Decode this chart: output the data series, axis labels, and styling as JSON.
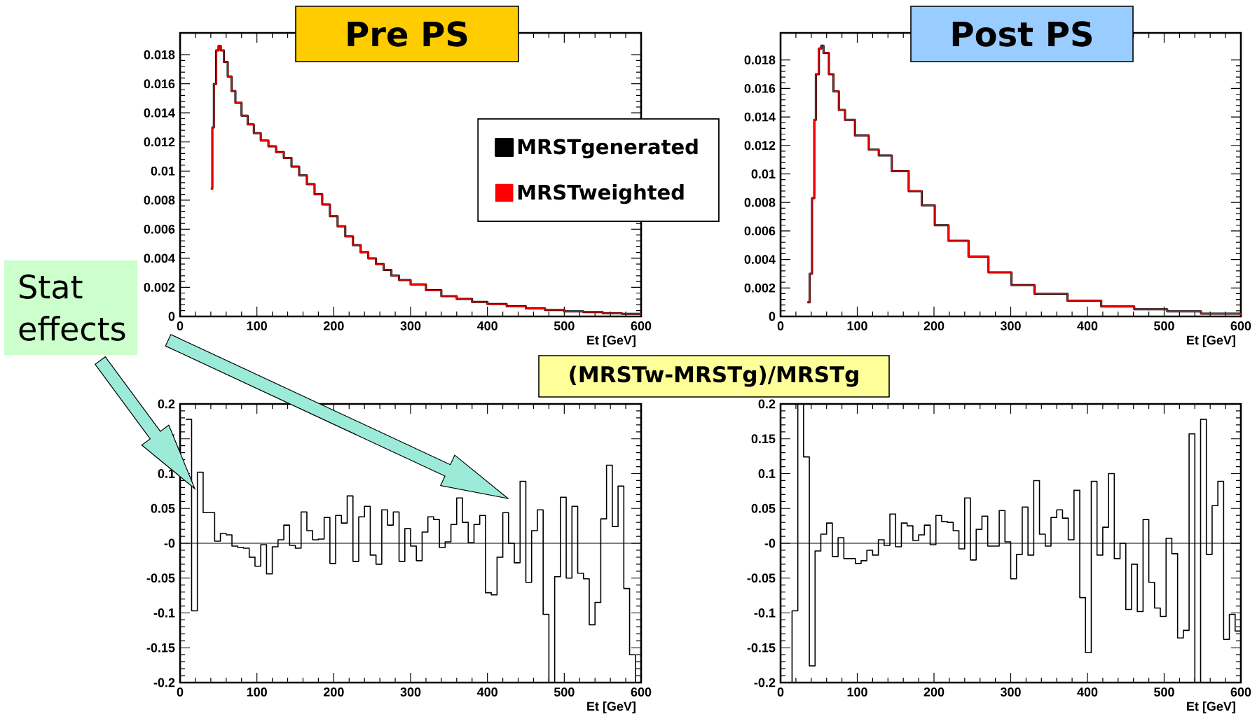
{
  "chart_data": [
    {
      "type": "step",
      "title": "Pre PS",
      "xlabel": "Et [GeV]",
      "legend": "right",
      "xlim": [
        0,
        600
      ],
      "ylim": [
        0,
        0.0195
      ],
      "xticks": [
        0,
        100,
        200,
        300,
        400,
        500,
        600
      ],
      "yticks": [
        0,
        0.002,
        0.004,
        0.006,
        0.008,
        0.01,
        0.012,
        0.014,
        0.016,
        0.018
      ],
      "x": [
        40,
        42,
        44,
        47,
        50,
        53,
        57,
        62,
        67,
        72,
        80,
        88,
        96,
        105,
        115,
        125,
        135,
        145,
        155,
        165,
        175,
        185,
        195,
        205,
        215,
        225,
        235,
        245,
        255,
        265,
        275,
        285,
        300,
        320,
        340,
        360,
        380,
        400,
        425,
        450,
        475,
        500,
        525,
        550,
        575,
        600
      ],
      "series": [
        {
          "name": "MRSTgenerated",
          "color": "#000000",
          "values": [
            0.0088,
            0.013,
            0.016,
            0.0183,
            0.0186,
            0.0183,
            0.0175,
            0.0165,
            0.0155,
            0.0147,
            0.0138,
            0.0132,
            0.0126,
            0.0121,
            0.0117,
            0.0113,
            0.0109,
            0.0103,
            0.0097,
            0.0091,
            0.0084,
            0.0077,
            0.0069,
            0.0062,
            0.0055,
            0.0049,
            0.0044,
            0.004,
            0.0036,
            0.0032,
            0.0028,
            0.0025,
            0.0022,
            0.0018,
            0.0014,
            0.0012,
            0.001,
            0.00085,
            0.0007,
            0.00055,
            0.00045,
            0.00035,
            0.0003,
            0.00022,
            0.00018,
            0.00012
          ]
        },
        {
          "name": "MRSTweighted",
          "color": "#ff0000",
          "values": [
            0.0088,
            0.013,
            0.016,
            0.0183,
            0.0186,
            0.0183,
            0.0175,
            0.0165,
            0.0155,
            0.0147,
            0.0138,
            0.0132,
            0.0126,
            0.0121,
            0.0117,
            0.0113,
            0.0109,
            0.0103,
            0.0097,
            0.0091,
            0.0084,
            0.0077,
            0.0069,
            0.0062,
            0.0055,
            0.0049,
            0.0044,
            0.004,
            0.0036,
            0.0032,
            0.0028,
            0.0025,
            0.0022,
            0.0018,
            0.0014,
            0.0012,
            0.001,
            0.00085,
            0.0007,
            0.00055,
            0.00045,
            0.00035,
            0.0003,
            0.00022,
            0.00018,
            0.00012
          ]
        }
      ]
    },
    {
      "type": "step",
      "title": "Post PS",
      "xlabel": "Et [GeV]",
      "xlim": [
        0,
        600
      ],
      "ylim": [
        0,
        0.0199
      ],
      "xticks": [
        0,
        100,
        200,
        300,
        400,
        500,
        600
      ],
      "yticks": [
        0,
        0.002,
        0.004,
        0.006,
        0.008,
        0.01,
        0.012,
        0.014,
        0.016,
        0.018
      ],
      "x": [
        35,
        38,
        41,
        44,
        46,
        50,
        53,
        56,
        63,
        69,
        76,
        84,
        97,
        115,
        128,
        145,
        167,
        184,
        201,
        219,
        245,
        271,
        301,
        331,
        374,
        418,
        461,
        504,
        548,
        600
      ],
      "series": [
        {
          "color": "#000000",
          "values": [
            0.001,
            0.003,
            0.0083,
            0.0138,
            0.017,
            0.0188,
            0.019,
            0.0185,
            0.017,
            0.0158,
            0.0145,
            0.0138,
            0.0127,
            0.0117,
            0.0113,
            0.0102,
            0.0088,
            0.0078,
            0.0064,
            0.0053,
            0.0042,
            0.0031,
            0.0022,
            0.0016,
            0.0011,
            0.0007,
            0.0005,
            0.00035,
            0.0002,
            0.0001
          ]
        },
        {
          "color": "#ff0000",
          "values": [
            0.001,
            0.003,
            0.0083,
            0.0138,
            0.017,
            0.0188,
            0.019,
            0.0185,
            0.017,
            0.0158,
            0.0145,
            0.0138,
            0.0127,
            0.0117,
            0.0113,
            0.0102,
            0.0088,
            0.0078,
            0.0064,
            0.0053,
            0.0042,
            0.0031,
            0.0022,
            0.0016,
            0.0011,
            0.0007,
            0.0005,
            0.00035,
            0.0002,
            0.0001
          ]
        }
      ]
    },
    {
      "type": "histogram",
      "title": "(MRSTw-MRSTg)/MRSTg",
      "xlabel": "Et [GeV]",
      "annotations": [
        "Stat effects"
      ],
      "color": "#000000",
      "xlim": [
        0,
        600
      ],
      "ylim": [
        -0.2,
        0.2
      ],
      "xticks": [
        0,
        100,
        200,
        300,
        400,
        500,
        600
      ],
      "yticks": [
        -0.2,
        -0.15,
        -0.1,
        -0.05,
        {
          "value": 0,
          "label": "-0"
        },
        0.05,
        0.1,
        0.15,
        0.2
      ],
      "ref_lines": [
        {
          "axis": "y",
          "value": 0
        }
      ],
      "bins": [
        7.5,
        15,
        22.5,
        30,
        37.5,
        45,
        52.5,
        60,
        67.5,
        75,
        82.5,
        90,
        97.5,
        105,
        112.5,
        120,
        127.5,
        135,
        142.5,
        150,
        157.5,
        165,
        172.5,
        180,
        187.5,
        195,
        202.5,
        210,
        217.5,
        225,
        232.5,
        240,
        247.5,
        255,
        262.5,
        270,
        277.5,
        285,
        292.5,
        300,
        307.5,
        315,
        322.5,
        330,
        337.5,
        345,
        352.5,
        360,
        367.5,
        375,
        382.5,
        390,
        397.5,
        405,
        412.5,
        420,
        427.5,
        435,
        442.5,
        450,
        457.5,
        465,
        472.5,
        480,
        487.5,
        495,
        502.5,
        510,
        517.5,
        525,
        532.5,
        540,
        547.5,
        555,
        562.5,
        570,
        577.5,
        585,
        592.5,
        600
      ],
      "values": [
        0.178,
        -0.097,
        0.102,
        0.044,
        0.044,
        0.003,
        0.014,
        0.012,
        -0.004,
        -0.006,
        -0.007,
        -0.02,
        -0.033,
        -0.002,
        -0.044,
        -0.005,
        0.005,
        0.026,
        -0.003,
        -0.007,
        0.045,
        0.018,
        0.005,
        0.006,
        0.037,
        -0.029,
        0.04,
        0.029,
        0.068,
        -0.026,
        0.038,
        0.053,
        -0.017,
        -0.03,
        0.048,
        0.026,
        0.045,
        -0.026,
        0.021,
        -0.004,
        -0.025,
        0.016,
        0.038,
        0.034,
        -0.006,
        0.002,
        0.027,
        0.065,
        0.03,
        0.001,
        0.027,
        0.04,
        -0.071,
        -0.074,
        -0.02,
        0.044,
        0.0,
        -0.028,
        0.089,
        -0.056,
        0.018,
        0.048,
        -0.102,
        -0.2,
        -0.048,
        0.066,
        -0.05,
        0.053,
        -0.043,
        -0.051,
        -0.117,
        -0.085,
        0.035,
        0.112,
        0.024,
        0.082,
        -0.065,
        -0.16,
        -0.2
      ]
    },
    {
      "type": "histogram",
      "xlabel": "Et [GeV]",
      "color": "#000000",
      "xlim": [
        0,
        600
      ],
      "ylim": [
        -0.2,
        0.2
      ],
      "xticks": [
        0,
        100,
        200,
        300,
        400,
        500,
        600
      ],
      "yticks": [
        -0.2,
        -0.15,
        -0.1,
        -0.05,
        {
          "value": 0,
          "label": "-0"
        },
        0.05,
        0.1,
        0.15,
        0.2
      ],
      "ref_lines": [
        {
          "axis": "y",
          "value": 0
        }
      ],
      "bins": [
        7.5,
        15,
        22.5,
        30,
        37.5,
        45,
        52.5,
        60,
        67.5,
        75,
        82.5,
        90,
        97.5,
        105,
        112.5,
        120,
        127.5,
        135,
        142.5,
        150,
        157.5,
        165,
        172.5,
        180,
        187.5,
        195,
        202.5,
        210,
        217.5,
        225,
        232.5,
        240,
        247.5,
        255,
        262.5,
        270,
        277.5,
        285,
        292.5,
        300,
        307.5,
        315,
        322.5,
        330,
        337.5,
        345,
        352.5,
        360,
        367.5,
        375,
        382.5,
        390,
        397.5,
        405,
        412.5,
        420,
        427.5,
        435,
        442.5,
        450,
        457.5,
        465,
        472.5,
        480,
        487.5,
        495,
        502.5,
        510,
        517.5,
        525,
        532.5,
        540,
        547.5,
        555,
        562.5,
        570,
        577.5,
        585,
        592.5,
        600
      ],
      "values": [
        -0.2,
        -0.097,
        0.2,
        0.124,
        -0.176,
        -0.011,
        0.013,
        0.029,
        -0.019,
        0.008,
        -0.022,
        -0.022,
        -0.029,
        -0.025,
        -0.01,
        -0.017,
        0.005,
        -0.003,
        0.042,
        -0.005,
        0.029,
        0.025,
        0.004,
        0.012,
        0.026,
        -0.002,
        0.04,
        0.031,
        0.03,
        0.018,
        -0.008,
        0.065,
        -0.024,
        0.02,
        0.039,
        -0.004,
        -0.004,
        0.047,
        0.002,
        -0.051,
        -0.016,
        0.052,
        -0.017,
        0.09,
        0.013,
        -0.004,
        0.037,
        0.048,
        0.036,
        0.005,
        0.076,
        -0.078,
        -0.157,
        0.089,
        -0.017,
        0.023,
        0.1,
        -0.022,
        0.0,
        -0.095,
        -0.03,
        -0.098,
        0.034,
        -0.056,
        -0.093,
        -0.105,
        0.007,
        -0.015,
        -0.136,
        -0.125,
        0.157,
        -0.2,
        0.178,
        -0.016,
        0.054,
        0.089,
        -0.138,
        -0.102,
        -0.126
      ]
    }
  ]
}
